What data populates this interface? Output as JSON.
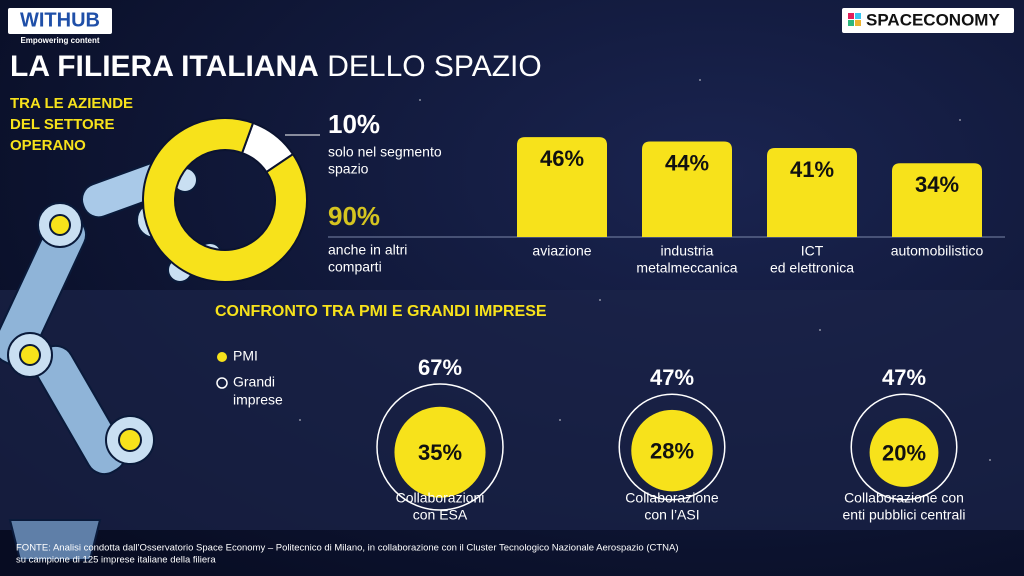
{
  "header": {
    "logo": "WITHUB",
    "logo_tagline": "Empowering content",
    "tag": "SPACECONOMY",
    "title_bold": "LA FILIERA ITALIANA",
    "title_light": "DELLO SPAZIO"
  },
  "donut": {
    "title": [
      "TRA LE AZIENDE",
      "DEL SETTORE",
      "OPERANO"
    ],
    "segments": [
      {
        "value": 10,
        "value_label": "10%",
        "label": [
          "solo nel segmento",
          "spazio"
        ]
      },
      {
        "value": 90,
        "value_label": "90%",
        "label": [
          "anche in altri",
          "comparti"
        ]
      }
    ]
  },
  "bars": [
    {
      "value": 46,
      "value_label": "46%",
      "label": [
        "aviazione"
      ]
    },
    {
      "value": 44,
      "value_label": "44%",
      "label": [
        "industria",
        "metalmeccanica"
      ]
    },
    {
      "value": 41,
      "value_label": "41%",
      "label": [
        "ICT",
        "ed elettronica"
      ]
    },
    {
      "value": 34,
      "value_label": "34%",
      "label": [
        "automobilistico"
      ]
    }
  ],
  "comparison": {
    "title": "CONFRONTO TRA PMI E GRANDI IMPRESE",
    "legend": [
      [
        "PMI"
      ],
      [
        "Grandi",
        "imprese"
      ]
    ],
    "items": [
      {
        "total": 67,
        "total_label": "67%",
        "pmi": 35,
        "pmi_label": "35%",
        "label": [
          "Collaborazioni",
          "con ESA"
        ]
      },
      {
        "total": 47,
        "total_label": "47%",
        "pmi": 28,
        "pmi_label": "28%",
        "label": [
          "Collaborazione",
          "con l’ASI"
        ]
      },
      {
        "total": 47,
        "total_label": "47%",
        "pmi": 20,
        "pmi_label": "20%",
        "label": [
          "Collaborazione con",
          "enti pubblici centrali"
        ]
      }
    ]
  },
  "footer": [
    "FONTE:  Analisi condotta dall’Osservatorio Space Economy – Politecnico di Milano, in collaborazione con il Cluster Tecnologico Nazionale Aerospazio (CTNA)",
    "su campione di 125 imprese italiane della filiera"
  ]
}
